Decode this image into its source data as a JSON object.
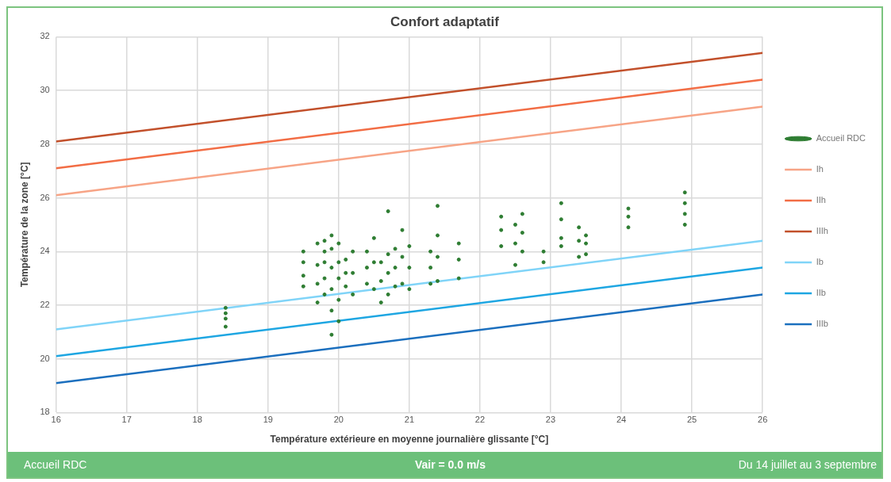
{
  "chart_data": {
    "type": "scatter",
    "title": "Confort adaptatif",
    "xlabel": "Température extérieure en moyenne journalière glissante [°C]",
    "ylabel": "Température de la zone [°C]",
    "xlim": [
      16,
      26
    ],
    "xticks": [
      16,
      17,
      18,
      19,
      20,
      21,
      22,
      23,
      24,
      25,
      26
    ],
    "ylim": [
      18,
      32
    ],
    "yticks": [
      18,
      20,
      22,
      24,
      26,
      28,
      30,
      32
    ],
    "grid": true,
    "legend": "right",
    "series": [
      {
        "name": "Accueil RDC",
        "marker": "circle",
        "color": "#2e7d32",
        "x": [
          18.4,
          18.4,
          18.4,
          18.4,
          19.5,
          19.5,
          19.5,
          19.5,
          19.7,
          19.7,
          19.7,
          19.7,
          19.8,
          19.8,
          19.8,
          19.8,
          19.8,
          19.9,
          19.9,
          19.9,
          19.9,
          19.9,
          19.9,
          20.0,
          20.0,
          20.0,
          20.0,
          20.0,
          20.1,
          20.1,
          20.1,
          20.2,
          20.2,
          20.2,
          20.4,
          20.4,
          20.4,
          20.5,
          20.5,
          20.5,
          20.6,
          20.6,
          20.6,
          20.7,
          20.7,
          20.7,
          20.7,
          20.8,
          20.8,
          20.8,
          20.9,
          20.9,
          20.9,
          21.0,
          21.0,
          21.0,
          21.3,
          21.3,
          21.3,
          21.4,
          21.4,
          21.4,
          21.4,
          21.7,
          21.7,
          21.7,
          22.3,
          22.3,
          22.3,
          22.5,
          22.5,
          22.5,
          22.6,
          22.6,
          22.6,
          22.9,
          22.9,
          23.15,
          23.15,
          23.15,
          23.15,
          23.4,
          23.4,
          23.4,
          23.5,
          23.5,
          23.5,
          24.1,
          24.1,
          24.1,
          24.9,
          24.9,
          24.9,
          24.9
        ],
        "values": [
          21.2,
          21.5,
          21.7,
          21.9,
          22.7,
          23.1,
          23.6,
          24.0,
          22.1,
          22.8,
          23.5,
          24.3,
          22.4,
          23.0,
          23.6,
          24.0,
          24.4,
          20.9,
          21.8,
          22.6,
          23.4,
          24.1,
          24.6,
          21.4,
          22.2,
          23.0,
          23.6,
          24.3,
          22.7,
          23.2,
          23.7,
          22.4,
          23.2,
          24.0,
          22.8,
          23.4,
          24.0,
          22.6,
          23.6,
          24.5,
          22.1,
          22.9,
          23.6,
          22.4,
          23.2,
          23.9,
          25.5,
          22.7,
          23.4,
          24.1,
          22.8,
          23.8,
          24.8,
          22.6,
          23.4,
          24.2,
          22.8,
          23.4,
          24.0,
          22.9,
          23.8,
          24.6,
          25.7,
          23.0,
          23.7,
          24.3,
          24.2,
          24.8,
          25.3,
          23.5,
          24.3,
          25.0,
          24.0,
          24.7,
          25.4,
          23.6,
          24.0,
          24.2,
          24.5,
          25.2,
          25.8,
          23.8,
          24.4,
          24.9,
          23.9,
          24.3,
          24.6,
          24.9,
          25.3,
          25.6,
          25.0,
          25.4,
          25.8,
          26.2
        ]
      },
      {
        "name": "Ih",
        "type": "line",
        "marker": "none",
        "color": "#f7a486",
        "x": [
          16,
          26
        ],
        "values": [
          26.1,
          29.4
        ]
      },
      {
        "name": "IIh",
        "type": "line",
        "marker": "none",
        "color": "#f26d45",
        "x": [
          16,
          26
        ],
        "values": [
          27.1,
          30.4
        ]
      },
      {
        "name": "IIIh",
        "type": "line",
        "marker": "none",
        "color": "#c2502b",
        "x": [
          16,
          26
        ],
        "values": [
          28.1,
          31.4
        ]
      },
      {
        "name": "Ib",
        "type": "line",
        "marker": "none",
        "color": "#80d4f8",
        "x": [
          16,
          26
        ],
        "values": [
          21.1,
          24.4
        ]
      },
      {
        "name": "IIb",
        "type": "line",
        "marker": "none",
        "color": "#1ea6e2",
        "x": [
          16,
          26
        ],
        "values": [
          20.1,
          23.4
        ]
      },
      {
        "name": "IIIb",
        "type": "line",
        "marker": "none",
        "color": "#1b6fbe",
        "x": [
          16,
          26
        ],
        "values": [
          19.1,
          22.4
        ]
      }
    ],
    "line_style": "solid",
    "annotations": [
      "Accueil RDC",
      "Vair = 0.0 m/s",
      "Du 14 juillet au 3 septembre"
    ]
  }
}
